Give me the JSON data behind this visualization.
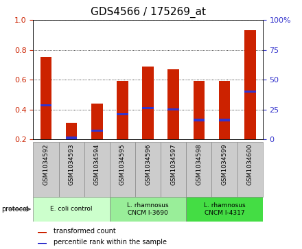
{
  "title": "GDS4566 / 175269_at",
  "samples": [
    "GSM1034592",
    "GSM1034593",
    "GSM1034594",
    "GSM1034595",
    "GSM1034596",
    "GSM1034597",
    "GSM1034598",
    "GSM1034599",
    "GSM1034600"
  ],
  "transformed_count": [
    0.75,
    0.31,
    0.44,
    0.59,
    0.69,
    0.67,
    0.59,
    0.59,
    0.93
  ],
  "percentile_rank": [
    0.43,
    0.21,
    0.26,
    0.37,
    0.41,
    0.4,
    0.33,
    0.33,
    0.52
  ],
  "bar_bottom": 0.2,
  "red_color": "#cc2200",
  "blue_color": "#3333cc",
  "ylim": [
    0.2,
    1.0
  ],
  "yticks_left": [
    0.2,
    0.4,
    0.6,
    0.8,
    1.0
  ],
  "yticks_right_pos": [
    0.2,
    0.4,
    0.6,
    0.8,
    1.0
  ],
  "yticks_right_labels": [
    "0",
    "25",
    "50",
    "75",
    "100%"
  ],
  "groups": [
    {
      "label": "E. coli control",
      "start": 0,
      "end": 3,
      "color": "#ccffcc"
    },
    {
      "label": "L. rhamnosus\nCNCM I-3690",
      "start": 3,
      "end": 6,
      "color": "#99ee99"
    },
    {
      "label": "L. rhamnosus\nCNCM I-4317",
      "start": 6,
      "end": 9,
      "color": "#44dd44"
    }
  ],
  "legend_red": "transformed count",
  "legend_blue": "percentile rank within the sample",
  "protocol_label": "protocol",
  "title_fontsize": 11,
  "bar_width": 0.45,
  "blue_bar_height": 0.015,
  "sample_box_color": "#cccccc",
  "gridline_yticks": [
    0.4,
    0.6,
    0.8,
    1.0
  ]
}
